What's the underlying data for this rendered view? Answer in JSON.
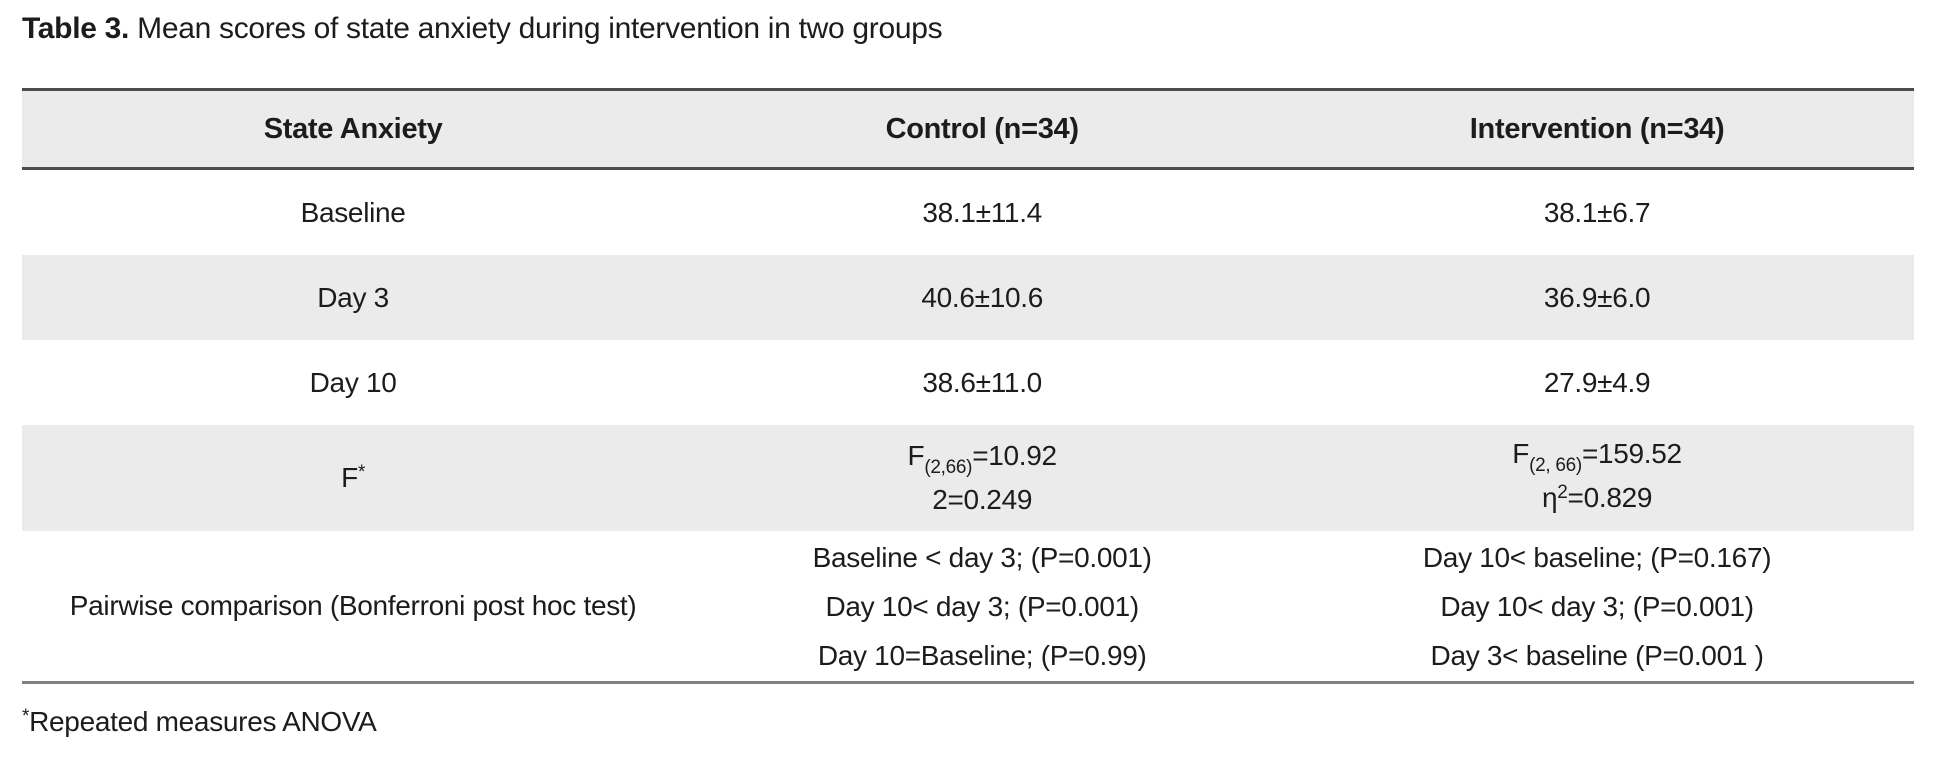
{
  "title": {
    "bold": "Table 3.",
    "text": " Mean scores of state anxiety during intervention in two groups"
  },
  "table": {
    "headers": [
      "State Anxiety",
      "Control (n=34)",
      "Intervention (n=34)"
    ],
    "rows": {
      "baseline": {
        "label": "Baseline",
        "control": "38.1±11.4",
        "intervention": "38.1±6.7"
      },
      "day3": {
        "label": "Day 3",
        "control": "40.6±10.6",
        "intervention": "36.9±6.0"
      },
      "day10": {
        "label": "Day 10",
        "control": "38.6±11.0",
        "intervention": "27.9±4.9"
      },
      "f": {
        "label": "F",
        "label_sup": "*",
        "control": {
          "f": "F",
          "sub": "(2,66)",
          "eq": "=10.92",
          "line2": "2=0.249"
        },
        "intervention": {
          "f": "F",
          "sub": "(2, 66)",
          "eq": "=159.52",
          "line2_base": "η",
          "line2_sup": "2",
          "line2_eq": "=0.829"
        }
      },
      "pairwise": {
        "label": "Pairwise comparison (Bonferroni post hoc test)",
        "control_lines": [
          "Baseline < day 3; (P=0.001)",
          "Day 10< day 3; (P=0.001)",
          "Day 10=Baseline; (P=0.99)"
        ],
        "intervention_lines": [
          "Day 10< baseline; (P=0.167)",
          "Day 10< day 3; (P=0.001)",
          "Day 3< baseline (P=0.001 )"
        ]
      }
    }
  },
  "footnote": {
    "marker": "*",
    "text": "Repeated measures ANOVA"
  },
  "colors": {
    "stripe": "#ebebeb",
    "border_dark": "#4d4d4d",
    "border_bottom": "#7f7f7f",
    "text": "#1c1c1c",
    "background": "#ffffff"
  }
}
